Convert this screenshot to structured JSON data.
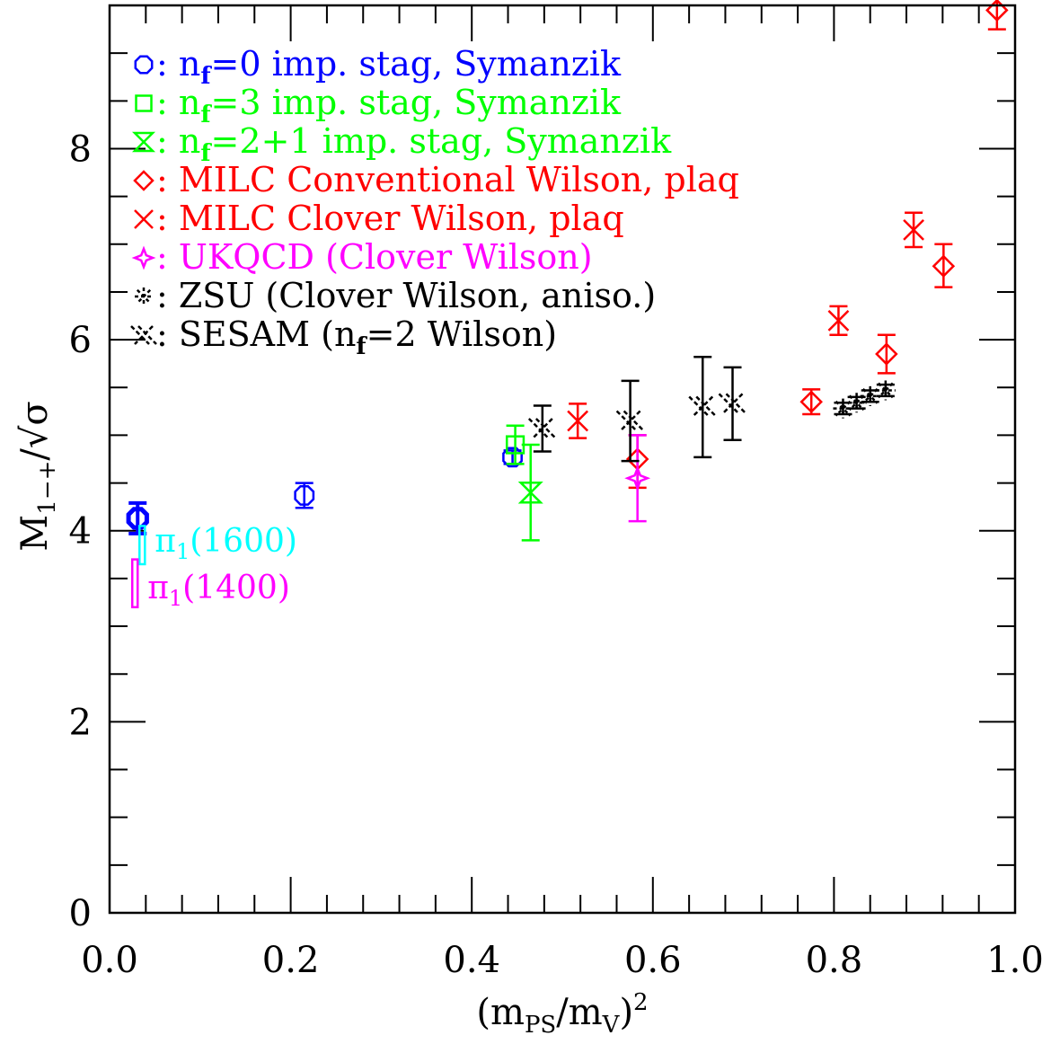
{
  "chart_data": {
    "type": "scatter",
    "title": "",
    "xlabel": {
      "base": "(m",
      "sub1": "PS",
      "mid": "/m",
      "sub2": "V",
      "close": ")",
      "sup": "2"
    },
    "ylabel": {
      "base": "M",
      "sub": "1−+",
      "rest": "/√σ"
    },
    "xlim": [
      0.0,
      1.0
    ],
    "ylim": [
      0,
      9.5
    ],
    "xticks": [
      {
        "v": 0.0,
        "label": "0.0"
      },
      {
        "v": 0.2,
        "label": "0.2"
      },
      {
        "v": 0.4,
        "label": "0.4"
      },
      {
        "v": 0.6,
        "label": "0.6"
      },
      {
        "v": 0.8,
        "label": "0.8"
      },
      {
        "v": 1.0,
        "label": "1.0"
      }
    ],
    "yticks": [
      {
        "v": 0,
        "label": "0"
      },
      {
        "v": 2,
        "label": "2"
      },
      {
        "v": 4,
        "label": "4"
      },
      {
        "v": 6,
        "label": "6"
      },
      {
        "v": 8,
        "label": "8"
      }
    ],
    "legend_position": "top-left",
    "legend": [
      {
        "pre": ": n",
        "sub": "f",
        "post": "=0 imp. stag, Symanzik",
        "color": "#0000ff",
        "marker": "octagon"
      },
      {
        "pre": ": n",
        "sub": "f",
        "post": "=3 imp. stag, Symanzik",
        "color": "#00ff00",
        "marker": "square"
      },
      {
        "pre": ": n",
        "sub": "f",
        "post": "=2+1 imp. stag, Symanzik",
        "color": "#00ff00",
        "marker": "hourglass"
      },
      {
        "pre": ": MILC Conventional Wilson, plaq",
        "sub": "",
        "post": "",
        "color": "#ff0000",
        "marker": "diamond"
      },
      {
        "pre": ": MILC Clover Wilson, plaq",
        "sub": "",
        "post": "",
        "color": "#ff0000",
        "marker": "cross"
      },
      {
        "pre": ": UKQCD (Clover Wilson)",
        "sub": "",
        "post": "",
        "color": "#ff00ff",
        "marker": "star4"
      },
      {
        "pre": ": ZSU (Clover Wilson, aniso.)",
        "sub": "",
        "post": "",
        "color": "#000000",
        "marker": "asterisk"
      },
      {
        "pre": ": SESAM (n",
        "sub": "f",
        "post": "=2 Wilson)",
        "color": "#000000",
        "marker": "doublecross"
      }
    ],
    "series": [
      {
        "marker": "octagon",
        "color": "#0000ff",
        "points": [
          {
            "x": 0.031,
            "y": 4.13,
            "lo": 3.97,
            "hi": 4.29,
            "bold": true
          },
          {
            "x": 0.215,
            "y": 4.37,
            "lo": 4.24,
            "hi": 4.5
          },
          {
            "x": 0.445,
            "y": 4.77,
            "lo": 4.7,
            "hi": 4.84
          }
        ]
      },
      {
        "marker": "square",
        "color": "#00ff00",
        "points": [
          {
            "x": 0.448,
            "y": 4.9,
            "lo": 4.7,
            "hi": 5.1
          }
        ]
      },
      {
        "marker": "hourglass",
        "color": "#00ff00",
        "points": [
          {
            "x": 0.465,
            "y": 4.4,
            "lo": 3.9,
            "hi": 4.9
          }
        ]
      },
      {
        "marker": "diamond",
        "color": "#ff0000",
        "points": [
          {
            "x": 0.583,
            "y": 4.75,
            "lo": 4.45,
            "hi": 5.0
          },
          {
            "x": 0.775,
            "y": 5.35,
            "lo": 5.22,
            "hi": 5.48
          },
          {
            "x": 0.858,
            "y": 5.85,
            "lo": 5.65,
            "hi": 6.05
          },
          {
            "x": 0.921,
            "y": 6.77,
            "lo": 6.55,
            "hi": 7.0
          },
          {
            "x": 0.98,
            "y": 9.45,
            "lo": 9.25,
            "hi": 9.65
          }
        ]
      },
      {
        "marker": "cross",
        "color": "#ff0000",
        "points": [
          {
            "x": 0.517,
            "y": 5.15,
            "lo": 4.97,
            "hi": 5.33
          },
          {
            "x": 0.805,
            "y": 6.2,
            "lo": 6.05,
            "hi": 6.35
          },
          {
            "x": 0.888,
            "y": 7.15,
            "lo": 6.97,
            "hi": 7.33
          }
        ]
      },
      {
        "marker": "star4",
        "color": "#ff00ff",
        "points": [
          {
            "x": 0.583,
            "y": 4.55,
            "lo": 4.1,
            "hi": 5.0
          }
        ]
      },
      {
        "marker": "asterisk",
        "color": "#000000",
        "points": [
          {
            "x": 0.81,
            "y": 5.28,
            "lo": 5.22,
            "hi": 5.34
          },
          {
            "x": 0.825,
            "y": 5.34,
            "lo": 5.28,
            "hi": 5.4
          },
          {
            "x": 0.84,
            "y": 5.41,
            "lo": 5.35,
            "hi": 5.47
          },
          {
            "x": 0.857,
            "y": 5.47,
            "lo": 5.41,
            "hi": 5.53
          }
        ]
      },
      {
        "marker": "doublecross",
        "color": "#000000",
        "points": [
          {
            "x": 0.478,
            "y": 5.07,
            "lo": 4.83,
            "hi": 5.31
          },
          {
            "x": 0.575,
            "y": 5.15,
            "lo": 4.73,
            "hi": 5.57
          },
          {
            "x": 0.655,
            "y": 5.3,
            "lo": 4.77,
            "hi": 5.82
          },
          {
            "x": 0.688,
            "y": 5.33,
            "lo": 4.95,
            "hi": 5.71
          }
        ]
      }
    ],
    "experiment_bands": [
      {
        "pre": "π",
        "sub": "1",
        "post": "(1600)",
        "color": "#00ffff",
        "x": 0.036,
        "lo": 3.65,
        "hi": 4.05
      },
      {
        "pre": "π",
        "sub": "1",
        "post": "(1400)",
        "color": "#ff00ff",
        "x": 0.028,
        "lo": 3.2,
        "hi": 3.7
      }
    ]
  }
}
